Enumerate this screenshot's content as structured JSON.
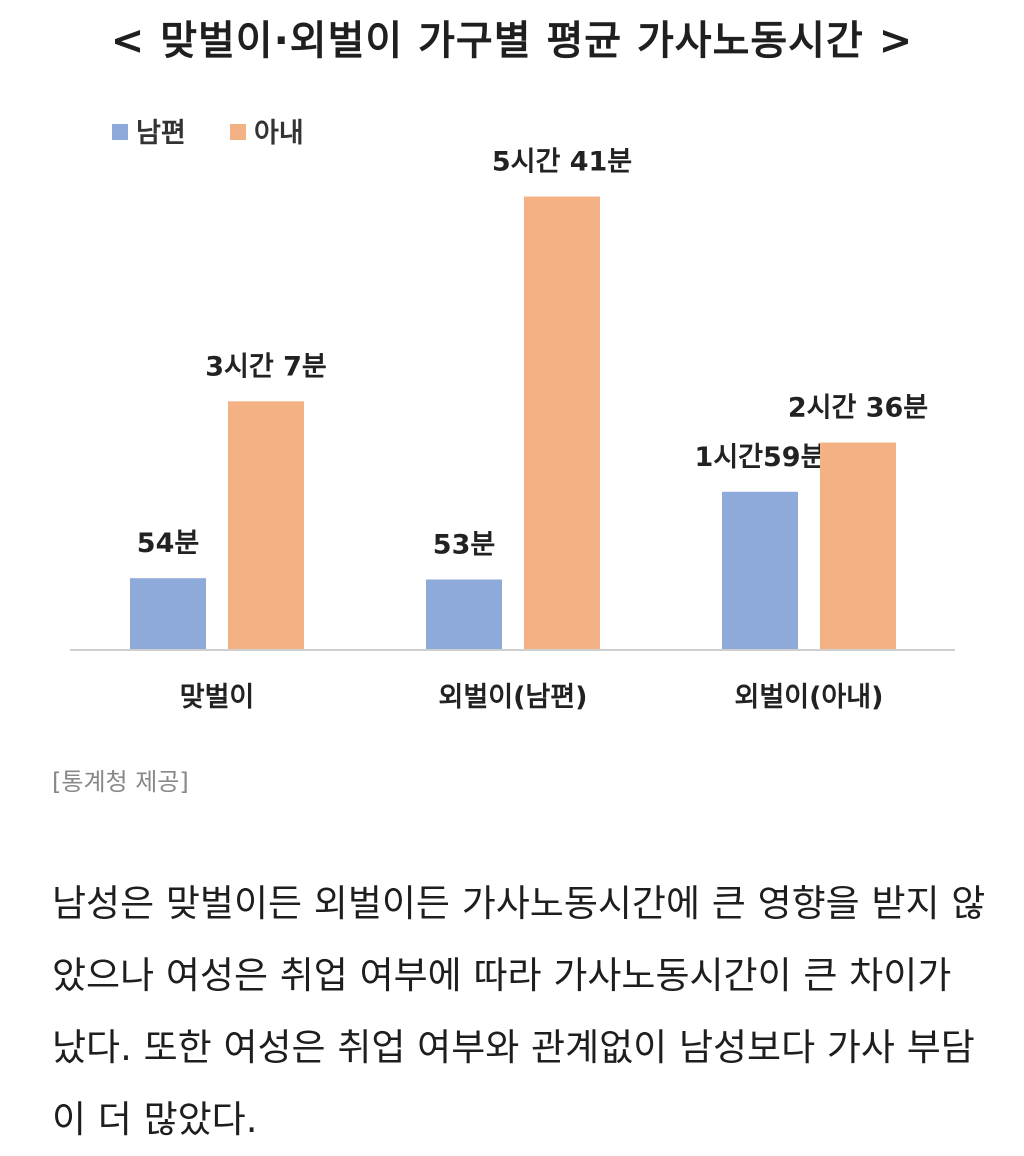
{
  "chart_data": {
    "type": "bar",
    "title": "< 맞벌이·외벌이 가구별 평균 가사노동시간 >",
    "categories": [
      "맞벌이",
      "외벌이(남편)",
      "외벌이(아내)"
    ],
    "unit": "minutes",
    "series": [
      {
        "name": "남편",
        "color": "#8eaadb",
        "values": [
          54,
          53,
          119
        ],
        "labels": [
          "54분",
          "53분",
          "1시간59분"
        ]
      },
      {
        "name": "아내",
        "color": "#f4b183",
        "values": [
          187,
          341,
          156
        ],
        "labels": [
          "3시간 7분",
          "5시간 41분",
          "2시간 36분"
        ]
      }
    ],
    "ylim": [
      0,
      376
    ],
    "grid": false,
    "legend": "top-left"
  },
  "caption": "[통계청 제공]",
  "paragraph": "남성은 맞벌이든 외벌이든 가사노동시간에 큰 영향을 받지 않았으나 여성은 취업 여부에 따라 가사노동시간이 큰 차이가 났다. 또한 여성은 취업 여부와 관계없이 남성보다 가사 부담이 더 많았다."
}
